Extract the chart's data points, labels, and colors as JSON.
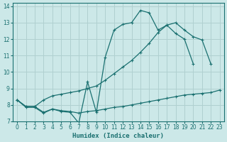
{
  "xlabel": "Humidex (Indice chaleur)",
  "background_color": "#cce8e8",
  "grid_color": "#b0d0d0",
  "line_color": "#1a7070",
  "xlim": [
    -0.5,
    23.5
  ],
  "ylim": [
    7,
    14.2
  ],
  "x_ticks": [
    0,
    1,
    2,
    3,
    4,
    5,
    6,
    7,
    8,
    9,
    10,
    11,
    12,
    13,
    14,
    15,
    16,
    17,
    18,
    19,
    20,
    21,
    22,
    23
  ],
  "y_ticks": [
    7,
    8,
    9,
    10,
    11,
    12,
    13,
    14
  ],
  "series1_x": [
    0,
    1,
    2,
    3,
    4,
    5,
    6,
    7,
    8,
    9,
    10,
    11,
    12,
    13,
    14,
    15,
    16,
    17,
    18,
    19,
    20
  ],
  "series1_y": [
    8.3,
    7.85,
    7.85,
    7.5,
    7.75,
    7.6,
    7.55,
    6.9,
    9.4,
    7.55,
    10.9,
    12.55,
    12.9,
    13.0,
    13.75,
    13.6,
    12.55,
    12.85,
    12.35,
    12.0,
    10.5
  ],
  "series2_x": [
    0,
    1,
    2,
    3,
    4,
    5,
    6,
    7,
    8,
    9,
    10,
    11,
    12,
    13,
    14,
    15,
    16,
    17,
    18,
    19,
    20,
    21,
    22
  ],
  "series2_y": [
    8.3,
    7.9,
    7.9,
    8.3,
    8.55,
    8.65,
    8.75,
    8.85,
    9.0,
    9.15,
    9.5,
    9.9,
    10.3,
    10.7,
    11.2,
    11.75,
    12.4,
    12.85,
    13.0,
    12.55,
    12.15,
    11.95,
    10.5
  ],
  "series3_x": [
    0,
    1,
    2,
    3,
    4,
    5,
    6,
    7,
    8,
    9,
    10,
    11,
    12,
    13,
    14,
    15,
    16,
    17,
    18,
    19,
    20,
    21,
    22,
    23
  ],
  "series3_y": [
    8.3,
    7.9,
    7.9,
    7.55,
    7.75,
    7.65,
    7.6,
    7.5,
    7.6,
    7.65,
    7.75,
    7.85,
    7.9,
    8.0,
    8.1,
    8.2,
    8.3,
    8.4,
    8.5,
    8.6,
    8.65,
    8.7,
    8.75,
    8.9
  ]
}
